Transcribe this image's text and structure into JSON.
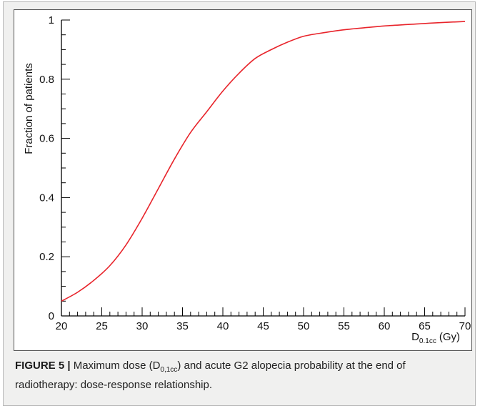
{
  "chart_data": {
    "type": "line",
    "title": "",
    "xlabel": "D0.1cc (Gy)",
    "xlabel_main": "D",
    "xlabel_sub": "0.1cc",
    "xlabel_unit": "(Gy)",
    "ylabel": "Fraction of patients",
    "xlim": [
      20,
      70
    ],
    "ylim": [
      0,
      1
    ],
    "x_ticks": [
      20,
      25,
      30,
      35,
      40,
      45,
      50,
      55,
      60,
      65,
      70
    ],
    "y_ticks": [
      0,
      0.2,
      0.4,
      0.6,
      0.8,
      1
    ],
    "y_tick_labels": [
      "0",
      "0.2",
      "0.4",
      "0.6",
      "0.8",
      "1"
    ],
    "grid": false,
    "series": [
      {
        "color": "#e8242b",
        "x": [
          20,
          22,
          24,
          26,
          28,
          30,
          32,
          34,
          36,
          38,
          40,
          42,
          44,
          46,
          48,
          50,
          52,
          55,
          58,
          60,
          63,
          66,
          70
        ],
        "y": [
          0.05,
          0.08,
          0.12,
          0.17,
          0.24,
          0.33,
          0.43,
          0.53,
          0.62,
          0.69,
          0.76,
          0.82,
          0.87,
          0.9,
          0.925,
          0.945,
          0.955,
          0.967,
          0.975,
          0.98,
          0.985,
          0.99,
          0.995
        ]
      }
    ]
  },
  "caption": {
    "label": "FIGURE 5 |",
    "text_before": " Maximum dose (D",
    "subscript": "0,1cc",
    "text_after": ") and acute G2 alopecia probability at the end of radiotherapy: dose-response relationship."
  }
}
